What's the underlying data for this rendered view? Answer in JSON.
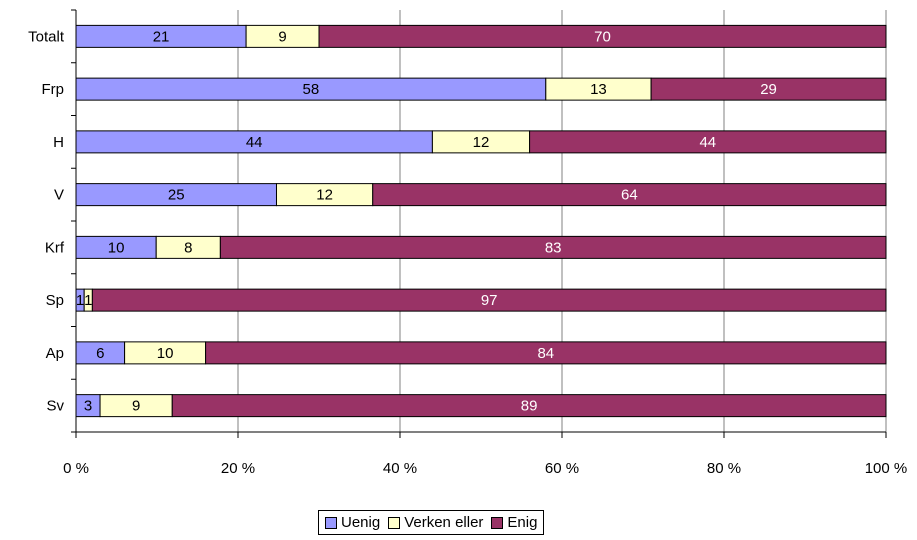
{
  "chart_data": {
    "type": "bar",
    "orientation": "horizontal",
    "stacked": "percent",
    "categories": [
      "Totalt",
      "Frp",
      "H",
      "V",
      "Krf",
      "Sp",
      "Ap",
      "Sv"
    ],
    "series": [
      {
        "name": "Uenig",
        "values": [
          21,
          58,
          44,
          25,
          10,
          1,
          6,
          3
        ],
        "color": "#9999ff"
      },
      {
        "name": "Verken eller",
        "values": [
          9,
          13,
          12,
          12,
          8,
          1,
          10,
          9
        ],
        "color": "#ffffcc"
      },
      {
        "name": "Enig",
        "values": [
          70,
          29,
          44,
          64,
          83,
          97,
          84,
          89
        ],
        "color": "#993366"
      }
    ],
    "label_colors": [
      "#000000",
      "#000000",
      "#ffffff"
    ],
    "xlim": [
      0,
      100
    ],
    "xticks": [
      "0 %",
      "20 %",
      "40 %",
      "60 %",
      "80 %",
      "100 %"
    ],
    "grid": true,
    "legend": "bottom"
  }
}
